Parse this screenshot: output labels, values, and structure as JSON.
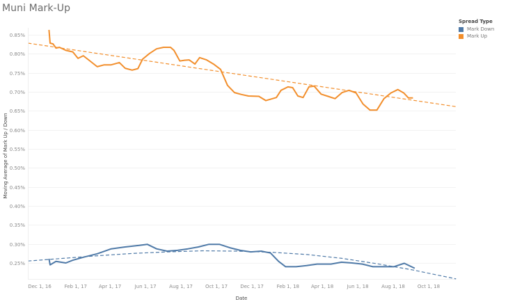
{
  "title": "Muni Mark-Up",
  "legend": {
    "title": "Spread Type",
    "items": [
      {
        "label": "Mark Down",
        "color": "#4e79a7"
      },
      {
        "label": "Mark Up",
        "color": "#f28e2b"
      }
    ]
  },
  "chart_data": {
    "type": "line",
    "title": "Muni Mark-Up",
    "xlabel": "Date",
    "ylabel": "Moving Average of Mark Up / Down",
    "x_ticks": [
      "Dec 1, 16",
      "Feb 1, 17",
      "Apr 1, 17",
      "Jun 1, 17",
      "Aug 1, 17",
      "Oct 1, 17",
      "Dec 1, 17",
      "Feb 1, 18",
      "Apr 1, 18",
      "Jun 1, 18",
      "Aug 1, 18",
      "Oct 1, 18"
    ],
    "x_tick_days": [
      0,
      62,
      121,
      182,
      243,
      304,
      365,
      427,
      486,
      547,
      608,
      669
    ],
    "y_ticks": [
      "0.85%",
      "0.80%",
      "0.75%",
      "0.70%",
      "0.65%",
      "0.60%",
      "0.55%",
      "0.50%",
      "0.45%",
      "0.40%",
      "0.35%",
      "0.30%",
      "0.25%"
    ],
    "y_tick_values": [
      0.85,
      0.8,
      0.75,
      0.7,
      0.65,
      0.6,
      0.55,
      0.5,
      0.45,
      0.4,
      0.35,
      0.3,
      0.25
    ],
    "ylim": [
      0.21,
      0.88
    ],
    "grid": "horizontal",
    "legend_position": "right",
    "x_origin": "2016-12-01",
    "series": [
      {
        "name": "Mark Up",
        "color": "#f28e2b",
        "days_from_origin": [
          16,
          18,
          23,
          28,
          34,
          45,
          57,
          66,
          75,
          85,
          99,
          111,
          123,
          137,
          147,
          159,
          169,
          177,
          189,
          201,
          213,
          225,
          231,
          241,
          249,
          257,
          267,
          275,
          287,
          299,
          311,
          323,
          335,
          347,
          359,
          377,
          389,
          407,
          415,
          427,
          435,
          444,
          453,
          463,
          472,
          484,
          496,
          508,
          520,
          532,
          544,
          556,
          568,
          580,
          592,
          604,
          616,
          626,
          634,
          642
        ],
        "values": [
          0.863,
          0.828,
          0.826,
          0.815,
          0.817,
          0.809,
          0.805,
          0.788,
          0.795,
          0.783,
          0.766,
          0.771,
          0.771,
          0.777,
          0.762,
          0.757,
          0.761,
          0.786,
          0.801,
          0.813,
          0.817,
          0.817,
          0.809,
          0.781,
          0.783,
          0.784,
          0.773,
          0.79,
          0.784,
          0.773,
          0.759,
          0.717,
          0.698,
          0.693,
          0.689,
          0.688,
          0.677,
          0.685,
          0.704,
          0.713,
          0.711,
          0.689,
          0.685,
          0.713,
          0.715,
          0.694,
          0.688,
          0.682,
          0.698,
          0.704,
          0.697,
          0.668,
          0.652,
          0.652,
          0.682,
          0.697,
          0.706,
          0.697,
          0.684,
          0.684
        ]
      },
      {
        "name": "Mark Down",
        "color": "#4e79a7",
        "days_from_origin": [
          16,
          18,
          28,
          45,
          57,
          75,
          99,
          123,
          147,
          171,
          185,
          201,
          219,
          237,
          255,
          273,
          291,
          309,
          327,
          345,
          363,
          381,
          397,
          411,
          423,
          441,
          459,
          477,
          501,
          519,
          537,
          555,
          573,
          591,
          609,
          627,
          645
        ],
        "values": [
          0.261,
          0.245,
          0.254,
          0.25,
          0.257,
          0.265,
          0.274,
          0.287,
          0.292,
          0.296,
          0.299,
          0.287,
          0.281,
          0.283,
          0.287,
          0.292,
          0.299,
          0.299,
          0.29,
          0.283,
          0.279,
          0.281,
          0.276,
          0.254,
          0.24,
          0.24,
          0.243,
          0.247,
          0.247,
          0.252,
          0.25,
          0.247,
          0.24,
          0.24,
          0.24,
          0.249,
          0.236
        ]
      }
    ],
    "trend_lines": [
      {
        "name": "Mark Up trend",
        "type": "linear",
        "color": "#f28e2b",
        "days_from_origin": [
          -20,
          716
        ],
        "values": [
          0.828,
          0.661
        ]
      },
      {
        "name": "Mark Down trend",
        "type": "polynomial",
        "color": "#4e79a7",
        "days_from_origin": [
          -20,
          40,
          100,
          160,
          220,
          280,
          340,
          400,
          460,
          520,
          580,
          640,
          716
        ],
        "values": [
          0.255,
          0.262,
          0.269,
          0.275,
          0.279,
          0.282,
          0.281,
          0.278,
          0.272,
          0.262,
          0.248,
          0.232,
          0.208
        ]
      }
    ]
  }
}
